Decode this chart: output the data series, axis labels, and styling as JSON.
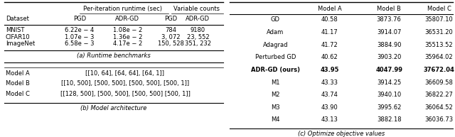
{
  "fig_width": 6.4,
  "fig_height": 1.93,
  "dpi": 100,
  "table_a": {
    "caption": "(a) Runtime benchmarks",
    "span_headers": [
      "Per-iteration runtime (sec)",
      "Variable counts"
    ],
    "col_headers": [
      "Dataset",
      "PGD",
      "ADR-GD",
      "PGD",
      "ADR-GD"
    ],
    "rows": [
      [
        "MNIST",
        "6.22e − 4",
        "1.08e − 2",
        "784",
        "9180"
      ],
      [
        "CIFAR10",
        "1.07e − 3",
        "1.36e − 2",
        "3, 072",
        "23, 552"
      ],
      [
        "ImageNet",
        "6.58e − 3",
        "4.17e − 2",
        "150, 528",
        "351, 232"
      ]
    ]
  },
  "table_b": {
    "caption": "(b) Model architecture",
    "rows": [
      [
        "Model A",
        "[[10, 64], [64, 64], [64, 1]]"
      ],
      [
        "Model B",
        "[[10, 500], [500, 500], [500, 500], [500, 1]]"
      ],
      [
        "Model C",
        "[[128, 500], [500, 500], [500, 500] [500, 1]]"
      ]
    ]
  },
  "table_c": {
    "caption": "(c) Optimize objective values",
    "headers": [
      "",
      "Model A",
      "Model B",
      "Model C"
    ],
    "rows": [
      [
        "GD",
        "40.58",
        "3873.76",
        "35807.10",
        false
      ],
      [
        "Adam",
        "41.17",
        "3914.07",
        "36531.20",
        false
      ],
      [
        "Adagrad",
        "41.72",
        "3884.90",
        "35513.52",
        false
      ],
      [
        "Perturbed GD",
        "40.62",
        "3903.20",
        "35964.02",
        false
      ],
      [
        "ADR-GD (ours)",
        "43.95",
        "4047.99",
        "37672.04",
        true
      ],
      [
        "M1",
        "43.33",
        "3914.25",
        "36609.58",
        false
      ],
      [
        "M2",
        "43.74",
        "3940.10",
        "36822.27",
        false
      ],
      [
        "M3",
        "43.90",
        "3995.62",
        "36064.52",
        false
      ],
      [
        "M4",
        "43.13",
        "3882.18",
        "36036.73",
        false
      ]
    ]
  }
}
